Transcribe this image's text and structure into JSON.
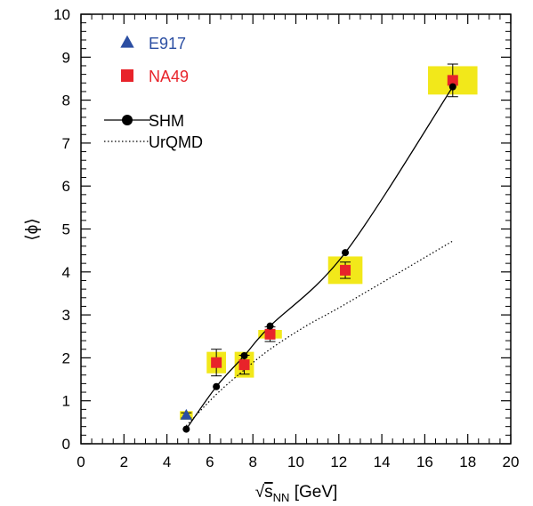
{
  "chart_data": {
    "type": "scatter",
    "title": "",
    "xlabel": {
      "prefix": "√",
      "main": "s",
      "sub": "NN",
      "suffix": " [GeV]"
    },
    "ylabel": "⟨ϕ⟩",
    "xlim": [
      0,
      20
    ],
    "ylim": [
      0,
      10
    ],
    "xticks": [
      0,
      2,
      4,
      6,
      8,
      10,
      12,
      14,
      16,
      18,
      20
    ],
    "yticks": [
      0,
      1,
      2,
      3,
      4,
      5,
      6,
      7,
      8,
      9,
      10
    ],
    "grid": false,
    "legend_position": "top-left",
    "series": [
      {
        "name": "E917",
        "kind": "points",
        "marker": "triangle",
        "color": "#2b4ea2",
        "points": [
          {
            "x": 4.9,
            "y": 0.66,
            "yerr": 0.06,
            "sys_dx": 0.3,
            "sys_dy": 0.1
          }
        ]
      },
      {
        "name": "NA49",
        "kind": "points",
        "marker": "square",
        "color": "#e8232a",
        "points": [
          {
            "x": 6.3,
            "y": 1.89,
            "yerr": 0.31,
            "sys_dx": 0.45,
            "sys_dy": 0.25
          },
          {
            "x": 7.6,
            "y": 1.84,
            "yerr": 0.22,
            "sys_dx": 0.45,
            "sys_dy": 0.3
          },
          {
            "x": 8.8,
            "y": 2.55,
            "yerr": 0.17,
            "sys_dx": 0.55,
            "sys_dy": 0.1
          },
          {
            "x": 12.3,
            "y": 4.04,
            "yerr": 0.19,
            "sys_dx": 0.8,
            "sys_dy": 0.32
          },
          {
            "x": 17.3,
            "y": 8.46,
            "yerr": 0.38,
            "sys_dx": 1.15,
            "sys_dy": 0.33
          }
        ]
      },
      {
        "name": "SHM",
        "kind": "line-points",
        "marker": "circle",
        "color": "#000000",
        "points": [
          {
            "x": 4.9,
            "y": 0.34
          },
          {
            "x": 6.3,
            "y": 1.33
          },
          {
            "x": 7.6,
            "y": 2.05
          },
          {
            "x": 8.8,
            "y": 2.74
          },
          {
            "x": 12.3,
            "y": 4.45
          },
          {
            "x": 17.3,
            "y": 8.31
          }
        ]
      },
      {
        "name": "UrQMD",
        "kind": "dotted-line",
        "color": "#000000",
        "points": [
          {
            "x": 4.9,
            "y": 0.42
          },
          {
            "x": 6.3,
            "y": 1.15
          },
          {
            "x": 7.6,
            "y": 1.72
          },
          {
            "x": 8.8,
            "y": 2.2
          },
          {
            "x": 10.5,
            "y": 2.75
          },
          {
            "x": 12.3,
            "y": 3.25
          },
          {
            "x": 17.3,
            "y": 4.72
          }
        ]
      }
    ],
    "systematic_box_color": "#f2e81a"
  }
}
